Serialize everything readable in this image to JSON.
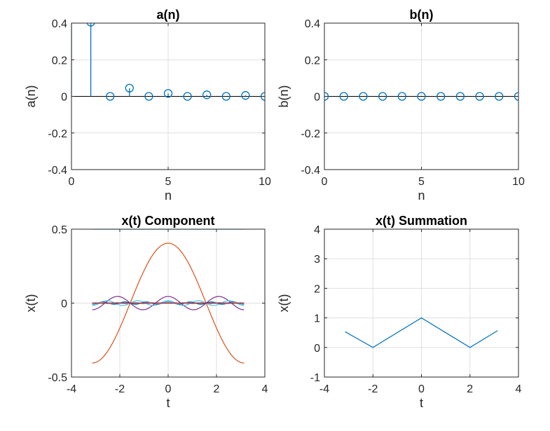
{
  "chart_data": [
    {
      "id": "an",
      "type": "stem",
      "title": "a(n)",
      "xlabel": "n",
      "ylabel": "a(n)",
      "xlim": [
        0,
        10
      ],
      "ylim": [
        -0.4,
        0.4
      ],
      "xticks": [
        0,
        5,
        10
      ],
      "yticks": [
        -0.4,
        -0.2,
        0,
        0.2,
        0.4
      ],
      "xtick_labels": [
        "0",
        "5",
        "10"
      ],
      "ytick_labels": [
        "-0.4",
        "-0.2",
        "0",
        "0.2",
        "0.4"
      ],
      "grid": true,
      "color": "#0072BD",
      "x": [
        0,
        1,
        2,
        3,
        4,
        5,
        6,
        7,
        8,
        9,
        10
      ],
      "y": [
        0.5,
        0.4053,
        0,
        0.045,
        0,
        0.0162,
        0,
        0.0083,
        0,
        0.005,
        0
      ]
    },
    {
      "id": "bn",
      "type": "stem",
      "title": "b(n)",
      "xlabel": "n",
      "ylabel": "b(n)",
      "xlim": [
        0,
        10
      ],
      "ylim": [
        -0.4,
        0.4
      ],
      "xticks": [
        0,
        5,
        10
      ],
      "yticks": [
        -0.4,
        -0.2,
        0,
        0.2,
        0.4
      ],
      "xtick_labels": [
        "0",
        "5",
        "10"
      ],
      "ytick_labels": [
        "-0.4",
        "-0.2",
        "0",
        "0.2",
        "0.4"
      ],
      "grid": true,
      "color": "#0072BD",
      "x": [
        0,
        1,
        2,
        3,
        4,
        5,
        6,
        7,
        8,
        9,
        10
      ],
      "y": [
        0,
        0,
        0,
        0,
        0,
        0,
        0,
        0,
        0,
        0,
        0
      ]
    },
    {
      "id": "xcomp",
      "type": "line",
      "title": "x(t) Component",
      "xlabel": "t",
      "ylabel": "x(t)",
      "xlim": [
        -4,
        4
      ],
      "ylim": [
        -0.5,
        0.5
      ],
      "xticks": [
        -4,
        -2,
        0,
        2,
        4
      ],
      "yticks": [
        -0.5,
        0,
        0.5
      ],
      "xtick_labels": [
        "-4",
        "-2",
        "0",
        "2",
        "4"
      ],
      "ytick_labels": [
        "-0.5",
        "0",
        "0.5"
      ],
      "grid": true,
      "t_range": [
        -3.1416,
        3.1416
      ],
      "series": [
        {
          "coef": 0.5,
          "harmonic": 0,
          "color": "#0072BD"
        },
        {
          "coef": 0.4053,
          "harmonic": 1,
          "color": "#D95319"
        },
        {
          "coef": 0,
          "harmonic": 2,
          "color": "#EDB120"
        },
        {
          "coef": 0.045,
          "harmonic": 3,
          "color": "#7E2F8E"
        },
        {
          "coef": 0,
          "harmonic": 4,
          "color": "#77AC30"
        },
        {
          "coef": 0.0162,
          "harmonic": 5,
          "color": "#4DBEEE"
        },
        {
          "coef": 0,
          "harmonic": 6,
          "color": "#A2142F"
        },
        {
          "coef": 0.0083,
          "harmonic": 7,
          "color": "#0072BD"
        },
        {
          "coef": 0,
          "harmonic": 8,
          "color": "#D95319"
        },
        {
          "coef": 0.005,
          "harmonic": 9,
          "color": "#EDB120"
        },
        {
          "coef": 0,
          "harmonic": 10,
          "color": "#7E2F8E"
        }
      ]
    },
    {
      "id": "xsum",
      "type": "line",
      "title": "x(t) Summation",
      "xlabel": "t",
      "ylabel": "x(t)",
      "xlim": [
        -4,
        4
      ],
      "ylim": [
        -1,
        4
      ],
      "xticks": [
        -4,
        -2,
        0,
        2,
        4
      ],
      "yticks": [
        -1,
        0,
        1,
        2,
        3,
        4
      ],
      "xtick_labels": [
        "-4",
        "-2",
        "0",
        "2",
        "4"
      ],
      "ytick_labels": [
        "-1",
        "0",
        "1",
        "2",
        "3",
        "4"
      ],
      "grid": true,
      "color": "#0072BD",
      "x": [
        -3.1416,
        -2.0,
        0.0,
        2.0,
        3.1416
      ],
      "y": [
        0.53,
        0.0,
        1.0,
        0.0,
        0.57
      ]
    }
  ]
}
